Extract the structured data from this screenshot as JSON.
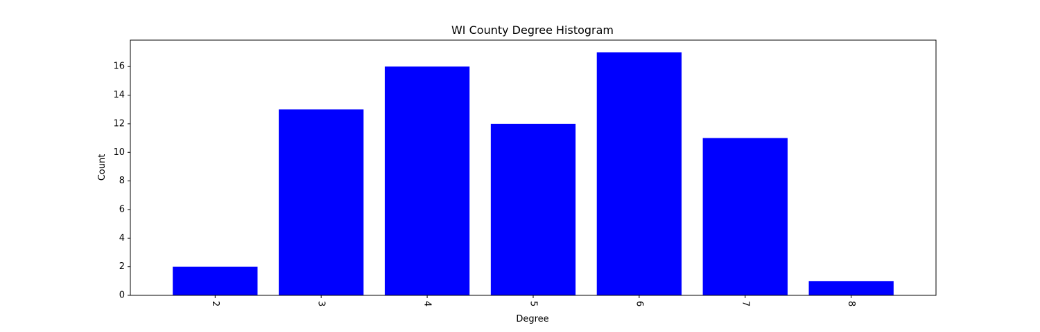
{
  "chart_data": {
    "type": "bar",
    "title": "WI County Degree Histogram",
    "xlabel": "Degree",
    "ylabel": "Count",
    "categories": [
      "2",
      "3",
      "4",
      "5",
      "6",
      "7",
      "8"
    ],
    "values": [
      2,
      13,
      16,
      12,
      17,
      11,
      1
    ],
    "yticks": [
      "0",
      "2",
      "4",
      "6",
      "8",
      "10",
      "12",
      "14",
      "16"
    ],
    "ylim": [
      0,
      17.85
    ],
    "bar_color": "#0000ff",
    "grid": false,
    "legend": "none",
    "xtick_rotation": "rotated"
  }
}
